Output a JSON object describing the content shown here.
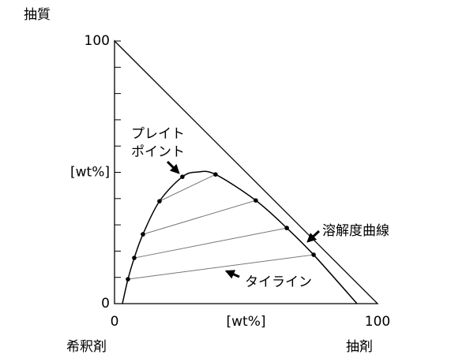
{
  "chart_data": {
    "type": "ternary",
    "top_label": "抽質",
    "left_label": "希釈剤",
    "right_label": "抽剤",
    "xlim": [
      0,
      100
    ],
    "ylim": [
      0,
      100
    ],
    "xticks": [
      0,
      {
        "value": 50,
        "label": "[wt%]"
      },
      100
    ],
    "yticks": [
      0,
      {
        "value": 50,
        "label": "[wt%]"
      },
      100
    ],
    "yminor": [
      10,
      20,
      30,
      40,
      60,
      70,
      80,
      90
    ],
    "curve": {
      "x": [
        3,
        5.1,
        7.5,
        10.8,
        17.1,
        25.8,
        31.5,
        38.4,
        53.7,
        65.5,
        75.7,
        92.2
      ],
      "y": [
        0,
        9.3,
        17.4,
        26.4,
        39,
        48.3,
        50.1,
        49.2,
        39.3,
        28.8,
        18.6,
        0
      ]
    },
    "points": {
      "x": [
        5.1,
        7.5,
        10.8,
        17.1,
        25.8,
        38.4,
        53.7,
        65.5,
        75.7
      ],
      "y": [
        9.3,
        17.4,
        26.4,
        39,
        48.3,
        49.2,
        39.3,
        28.8,
        18.6
      ]
    },
    "tie_lines": [
      {
        "x": [
          5.1,
          75.7
        ],
        "y": [
          9.3,
          18.6
        ]
      },
      {
        "x": [
          7.5,
          65.5
        ],
        "y": [
          17.4,
          28.8
        ]
      },
      {
        "x": [
          10.8,
          53.7
        ],
        "y": [
          26.4,
          39.3
        ]
      },
      {
        "x": [
          17.1,
          38.4
        ],
        "y": [
          39,
          49.2
        ]
      }
    ],
    "annotations": [
      "プレイト",
      "ポイント",
      "溶解度曲線",
      "タイライン"
    ]
  }
}
